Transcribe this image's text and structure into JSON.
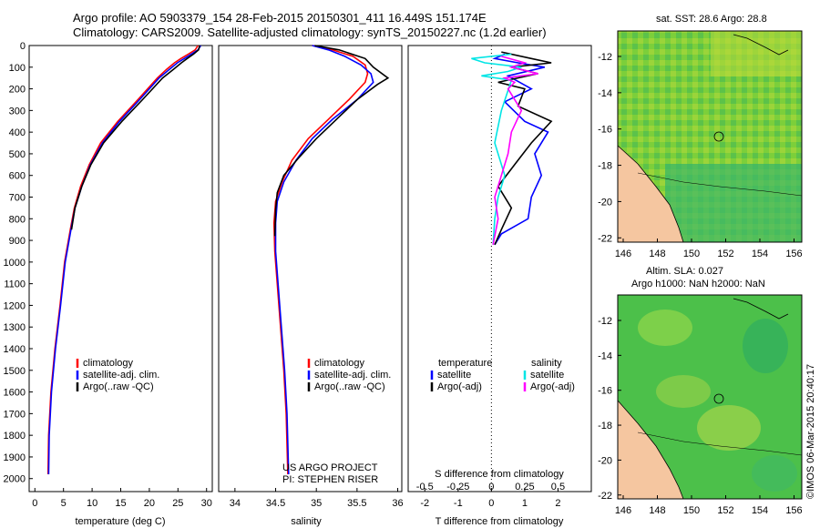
{
  "title": {
    "line1": "Argo profile: AO 5903379_154 28-Feb-2015 20150301_411 16.449S 151.174E",
    "line2": "Climatology: CARS2009. Satellite-adjusted climatology: synTS_20150227.nc (1.2d earlier)"
  },
  "chart_data": [
    {
      "type": "line",
      "id": "temperature",
      "xlabel": "temperature (deg C)",
      "ylabel": "",
      "xlim": [
        -1,
        31
      ],
      "ylim": [
        2060,
        0
      ],
      "xticks": [
        0,
        5,
        10,
        15,
        20,
        25,
        30
      ],
      "yticks": [
        0,
        100,
        200,
        300,
        400,
        500,
        600,
        700,
        800,
        900,
        1000,
        1100,
        1200,
        1300,
        1400,
        1500,
        1600,
        1700,
        1800,
        1900,
        2000
      ],
      "legend": [
        "climatology",
        "satellite-adj. clim.",
        "Argo(..raw -QC)"
      ],
      "series": [
        {
          "name": "climatology",
          "color": "#ff0000",
          "x": [
            28.5,
            28,
            26.8,
            25.5,
            24.4,
            23,
            21.4,
            18,
            14.5,
            11.5,
            9.5,
            8,
            6.9,
            6.2,
            5.2,
            4.4,
            3.5,
            2.8,
            2.4,
            2.3
          ],
          "y": [
            0,
            20,
            40,
            60,
            80,
            110,
            150,
            250,
            350,
            450,
            550,
            650,
            750,
            850,
            1000,
            1200,
            1400,
            1600,
            1800,
            1980
          ]
        },
        {
          "name": "satellite-adj. clim.",
          "color": "#0000ff",
          "x": [
            29,
            28.5,
            27.3,
            26.1,
            24.9,
            23.5,
            21.7,
            18.3,
            14.8,
            11.8,
            9.7,
            8.2,
            7,
            6.3,
            5.3,
            4.5,
            3.6,
            2.9,
            2.5,
            2.4
          ],
          "y": [
            0,
            20,
            40,
            60,
            80,
            110,
            150,
            250,
            350,
            450,
            550,
            650,
            750,
            850,
            1000,
            1200,
            1400,
            1600,
            1800,
            1980
          ]
        },
        {
          "name": "Argo(..raw -QC)",
          "color": "#000000",
          "x": [
            28.8,
            28.6,
            27.7,
            26.6,
            25.6,
            24.2,
            22.3,
            18.8,
            15.2,
            12,
            9.8,
            8.2,
            7,
            6.4
          ],
          "y": [
            0,
            20,
            40,
            60,
            80,
            110,
            150,
            250,
            350,
            450,
            550,
            650,
            750,
            850
          ]
        }
      ]
    },
    {
      "type": "line",
      "id": "salinity",
      "xlabel": "salinity",
      "xlim": [
        33.8,
        36.05
      ],
      "ylim": [
        2060,
        0
      ],
      "xticks": [
        34,
        34.5,
        35,
        35.5,
        36
      ],
      "legend": [
        "climatology",
        "satellite-adj. clim.",
        "Argo(..raw -QC)"
      ],
      "note": [
        "US ARGO PROJECT",
        "PI: STEPHEN RISER"
      ],
      "series": [
        {
          "name": "climatology",
          "color": "#ff0000",
          "x": [
            34.95,
            35.2,
            35.45,
            35.6,
            35.63,
            35.6,
            35.4,
            35.15,
            34.9,
            34.7,
            34.58,
            34.5,
            34.48,
            34.49,
            34.52,
            34.56,
            34.6,
            34.63,
            34.65
          ],
          "y": [
            0,
            20,
            50,
            90,
            130,
            170,
            250,
            340,
            430,
            530,
            630,
            720,
            820,
            950,
            1100,
            1300,
            1500,
            1700,
            1980
          ]
        },
        {
          "name": "satellite-adj. clim.",
          "color": "#0000ff",
          "x": [
            34.95,
            35.15,
            35.35,
            35.55,
            35.67,
            35.7,
            35.5,
            35.2,
            34.95,
            34.75,
            34.6,
            34.52,
            34.5,
            34.5,
            34.53,
            34.57,
            34.61,
            34.64,
            34.66
          ],
          "y": [
            0,
            20,
            50,
            90,
            130,
            170,
            250,
            340,
            430,
            530,
            630,
            720,
            820,
            950,
            1100,
            1300,
            1500,
            1700,
            1980
          ]
        },
        {
          "name": "Argo(..raw -QC)",
          "color": "#000000",
          "x": [
            34.98,
            35.28,
            35.6,
            35.7,
            35.88,
            35.75,
            35.5,
            35.25,
            35,
            34.78,
            34.6,
            34.52,
            34.5,
            34.49
          ],
          "y": [
            0,
            20,
            60,
            100,
            150,
            180,
            250,
            340,
            430,
            520,
            600,
            680,
            760,
            880
          ]
        }
      ]
    },
    {
      "type": "line",
      "id": "difference",
      "xlabel_top": "S difference from climatology",
      "xlabel": "T difference from climatology",
      "xlim": [
        -2.5,
        3
      ],
      "ylim": [
        2060,
        0
      ],
      "xticks": [
        -2,
        -1,
        0,
        1,
        2
      ],
      "s_ticks": [
        "-0.5",
        "-0.25",
        "0",
        "0.25",
        "0.5"
      ],
      "legend_temperature": [
        "temperature",
        "satellite",
        "Argo(-adj)"
      ],
      "legend_salinity": [
        "salinity",
        "satellite",
        "Argo(-adj)"
      ],
      "series": [
        {
          "name": "temperature satellite",
          "color": "#0000ff",
          "x": [
            0.4,
            0.1,
            0.8,
            1.6,
            0.5,
            1.2,
            0.4,
            1,
            1.7,
            1.3,
            1.5,
            1.2,
            1.1,
            0.3,
            0.1
          ],
          "y": [
            40,
            60,
            80,
            100,
            140,
            200,
            260,
            350,
            400,
            500,
            600,
            700,
            800,
            870,
            920
          ]
        },
        {
          "name": "temperature Argo(-adj)",
          "color": "#000000",
          "x": [
            0.3,
            1.2,
            1.8,
            0.6,
            1.4,
            0.2,
            1,
            0.8,
            1.8,
            1.2,
            0.7,
            0.2,
            0.6,
            0.3,
            0.1
          ],
          "y": [
            30,
            60,
            80,
            100,
            130,
            170,
            200,
            280,
            350,
            450,
            550,
            650,
            750,
            850,
            920
          ]
        },
        {
          "name": "salinity satellite",
          "color": "#00e5e5",
          "x": [
            0.6,
            -0.6,
            -0.2,
            0.9,
            0.5,
            -0.3,
            0.6,
            0.3,
            0.1,
            0.4,
            0.2,
            0.1,
            0.05
          ],
          "y": [
            40,
            60,
            80,
            100,
            120,
            140,
            160,
            300,
            450,
            600,
            700,
            800,
            920
          ]
        },
        {
          "name": "salinity Argo(-adj)",
          "color": "#ff00ff",
          "x": [
            0.3,
            1,
            0.6,
            1.4,
            0.4,
            0.7,
            0.5,
            0.9,
            0.6,
            0.5,
            0.3,
            0.1,
            0.2,
            0.05
          ],
          "y": [
            50,
            80,
            100,
            130,
            150,
            170,
            200,
            300,
            400,
            500,
            600,
            700,
            800,
            920
          ]
        }
      ]
    }
  ],
  "maps": {
    "sst": {
      "title": "sat. SST: 28.6  Argo: 28.8",
      "yticks": [
        "-12",
        "-14",
        "-16",
        "-18",
        "-20",
        "-22"
      ],
      "xticks": [
        "146",
        "148",
        "150",
        "152",
        "154",
        "156"
      ]
    },
    "sla": {
      "title_line1": "Altim. SLA: 0.027",
      "title_line2": "Argo h1000: NaN h2000: NaN",
      "yticks": [
        "-12",
        "-14",
        "-16",
        "-18",
        "-20",
        "-22"
      ],
      "xticks": [
        "146",
        "148",
        "150",
        "152",
        "154",
        "156"
      ]
    },
    "argo_position": {
      "lon": 151.174,
      "lat": -16.449
    }
  },
  "credit": "©IMOS 06-Mar-2015 20:40:17",
  "colors": {
    "climatology": "#ff0000",
    "satellite": "#0000ff",
    "argo": "#000000",
    "sal_satellite": "#00e5e5",
    "sal_argo": "#ff00ff",
    "land": "#f5c6a0"
  }
}
